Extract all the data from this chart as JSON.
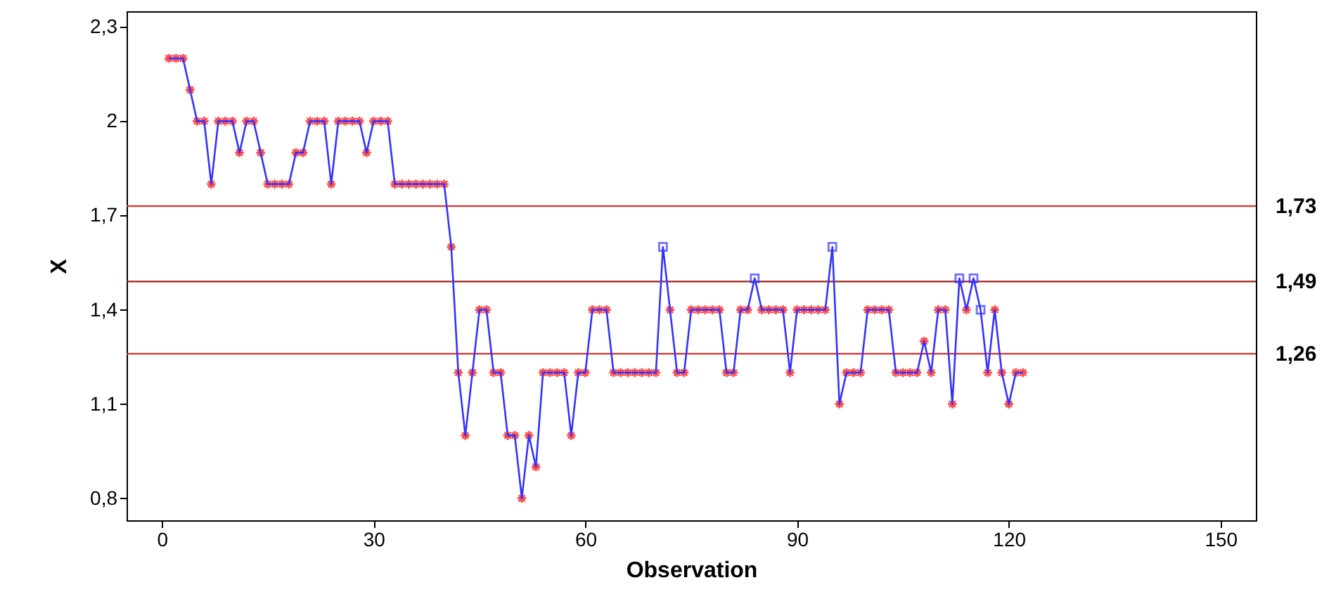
{
  "chart_data": {
    "type": "line",
    "xlabel": "Observation",
    "ylabel": "X",
    "xlim": [
      -5,
      155
    ],
    "xticks": [
      0,
      30,
      60,
      90,
      120,
      150
    ],
    "ylim": [
      0.73,
      2.35
    ],
    "yticks": [
      {
        "value": 0.8,
        "label": "0,8"
      },
      {
        "value": 1.1,
        "label": "1,1"
      },
      {
        "value": 1.4,
        "label": "1,4"
      },
      {
        "value": 1.7,
        "label": "1,7"
      },
      {
        "value": 2,
        "label": "2"
      },
      {
        "value": 2.3,
        "label": "2,3"
      }
    ],
    "series": [
      {
        "color": "#3333ff",
        "marker": "none",
        "x": [
          1,
          2,
          3,
          4,
          5,
          6,
          7,
          8,
          9,
          10,
          11,
          12,
          13,
          14,
          15,
          16,
          17,
          18,
          19,
          20,
          21,
          22,
          23,
          24,
          25,
          26,
          27,
          28,
          29,
          30,
          31,
          32,
          33,
          34,
          35,
          36,
          37,
          38,
          39,
          40,
          41,
          42,
          43,
          44,
          45,
          46,
          47,
          48,
          49,
          50,
          51,
          52,
          53,
          54,
          55,
          56,
          57,
          58,
          59,
          60,
          61,
          62,
          63,
          64,
          65,
          66,
          67,
          68,
          69,
          70,
          71,
          72,
          73,
          74,
          75,
          76,
          77,
          78,
          79,
          80,
          81,
          82,
          83,
          84,
          85,
          86,
          87,
          88,
          89,
          90,
          91,
          92,
          93,
          94,
          95,
          96,
          97,
          98,
          99,
          100,
          101,
          102,
          103,
          104,
          105,
          106,
          107,
          108,
          109,
          110,
          111,
          112,
          113,
          114,
          115,
          116,
          117,
          118,
          119,
          120,
          121,
          122
        ],
        "values": [
          2.2,
          2.2,
          2.2,
          2.1,
          2.0,
          2.0,
          1.8,
          2.0,
          2.0,
          2.0,
          1.9,
          2.0,
          2.0,
          1.9,
          1.8,
          1.8,
          1.8,
          1.8,
          1.9,
          1.9,
          2.0,
          2.0,
          2.0,
          1.8,
          2.0,
          2.0,
          2.0,
          2.0,
          1.9,
          2.0,
          2.0,
          2.0,
          1.8,
          1.8,
          1.8,
          1.8,
          1.8,
          1.8,
          1.8,
          1.8,
          1.6,
          1.2,
          1.0,
          1.2,
          1.4,
          1.4,
          1.2,
          1.2,
          1.0,
          1.0,
          0.8,
          1.0,
          0.9,
          1.2,
          1.2,
          1.2,
          1.2,
          1.0,
          1.2,
          1.2,
          1.4,
          1.4,
          1.4,
          1.2,
          1.2,
          1.2,
          1.2,
          1.2,
          1.2,
          1.2,
          1.6,
          1.4,
          1.2,
          1.2,
          1.4,
          1.4,
          1.4,
          1.4,
          1.4,
          1.2,
          1.2,
          1.4,
          1.4,
          1.5,
          1.4,
          1.4,
          1.4,
          1.4,
          1.2,
          1.4,
          1.4,
          1.4,
          1.4,
          1.4,
          1.6,
          1.1,
          1.2,
          1.2,
          1.2,
          1.4,
          1.4,
          1.4,
          1.4,
          1.2,
          1.2,
          1.2,
          1.2,
          1.3,
          1.2,
          1.4,
          1.4,
          1.1,
          1.5,
          1.4,
          1.5,
          1.4,
          1.2,
          1.4,
          1.2,
          1.1,
          1.2,
          1.2
        ]
      },
      {
        "type": "scatter",
        "color": "#ff0000",
        "marker": "cross",
        "x": [
          1,
          2,
          3,
          4,
          5,
          6,
          7,
          8,
          9,
          10,
          11,
          12,
          13,
          14,
          15,
          16,
          17,
          18,
          19,
          20,
          21,
          22,
          23,
          24,
          25,
          26,
          27,
          28,
          29,
          30,
          31,
          32,
          33,
          34,
          35,
          36,
          37,
          38,
          39,
          40,
          41,
          42,
          43,
          44,
          45,
          46,
          47,
          48,
          49,
          50,
          51,
          52,
          53,
          54,
          55,
          56,
          57,
          58,
          59,
          60,
          61,
          62,
          63,
          64,
          65,
          66,
          67,
          68,
          69,
          70,
          72,
          73,
          74,
          75,
          76,
          77,
          78,
          79,
          80,
          81,
          82,
          83,
          85,
          86,
          87,
          88,
          89,
          90,
          91,
          92,
          93,
          94,
          96,
          97,
          98,
          99,
          100,
          101,
          102,
          103,
          104,
          105,
          106,
          107,
          108,
          109,
          110,
          111,
          112,
          114,
          117,
          118,
          119,
          120,
          121,
          122
        ],
        "values": [
          2.2,
          2.2,
          2.2,
          2.1,
          2.0,
          2.0,
          1.8,
          2.0,
          2.0,
          2.0,
          1.9,
          2.0,
          2.0,
          1.9,
          1.8,
          1.8,
          1.8,
          1.8,
          1.9,
          1.9,
          2.0,
          2.0,
          2.0,
          1.8,
          2.0,
          2.0,
          2.0,
          2.0,
          1.9,
          2.0,
          2.0,
          2.0,
          1.8,
          1.8,
          1.8,
          1.8,
          1.8,
          1.8,
          1.8,
          1.8,
          1.6,
          1.2,
          1.0,
          1.2,
          1.4,
          1.4,
          1.2,
          1.2,
          1.0,
          1.0,
          0.8,
          1.0,
          0.9,
          1.2,
          1.2,
          1.2,
          1.2,
          1.0,
          1.2,
          1.2,
          1.4,
          1.4,
          1.4,
          1.2,
          1.2,
          1.2,
          1.2,
          1.2,
          1.2,
          1.2,
          1.4,
          1.2,
          1.2,
          1.4,
          1.4,
          1.4,
          1.4,
          1.4,
          1.2,
          1.2,
          1.4,
          1.4,
          1.4,
          1.4,
          1.4,
          1.4,
          1.2,
          1.4,
          1.4,
          1.4,
          1.4,
          1.4,
          1.1,
          1.2,
          1.2,
          1.2,
          1.4,
          1.4,
          1.4,
          1.4,
          1.2,
          1.2,
          1.2,
          1.2,
          1.3,
          1.2,
          1.4,
          1.4,
          1.1,
          1.4,
          1.2,
          1.4,
          1.2,
          1.1,
          1.2,
          1.2
        ]
      },
      {
        "type": "scatter",
        "color": "#3333ff",
        "marker": "square",
        "x": [
          71,
          84,
          95,
          113,
          115,
          116
        ],
        "values": [
          1.6,
          1.5,
          1.6,
          1.5,
          1.5,
          1.4
        ]
      }
    ],
    "ref_lines": [
      {
        "axis": "y",
        "value": 1.73,
        "label": "1,73",
        "color": "#e03030"
      },
      {
        "axis": "y",
        "value": 1.49,
        "label": "1,49",
        "color": "#a02020"
      },
      {
        "axis": "y",
        "value": 1.26,
        "label": "1,26",
        "color": "#e03030"
      }
    ]
  }
}
